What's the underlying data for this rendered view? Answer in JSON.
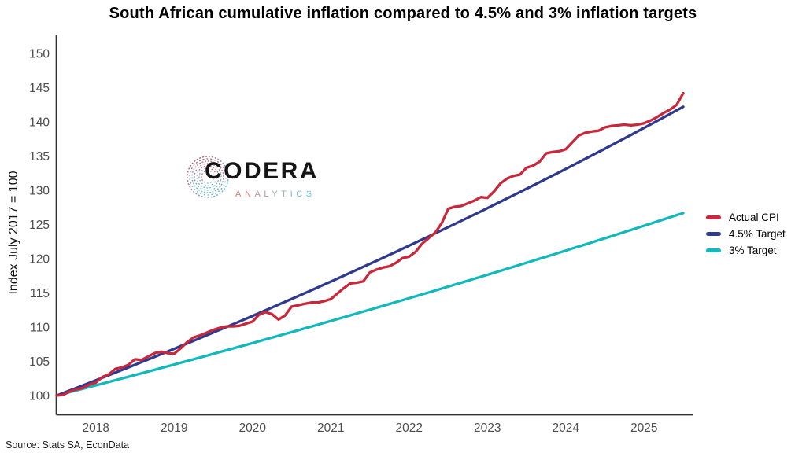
{
  "title": "South African cumulative inflation compared to 4.5% and 3% inflation targets",
  "y_axis_label": "Index July 2017 = 100",
  "source": "Source: Stats SA, EconData",
  "logo": {
    "name": "CODERA",
    "subtitle": "ANALYTICS",
    "subtitle_gradient": [
      "#DA8078",
      "#A79DB6",
      "#62CBDD"
    ],
    "name_color": "#151515"
  },
  "colors": {
    "actual_cpi": "#C9283C",
    "target_4_5": "#2D3A8D",
    "target_3": "#12B8BC",
    "axis_line": "#333333",
    "tick_text": "#4D4D4D"
  },
  "legend": {
    "position": "right-middle",
    "items": [
      "Actual CPI",
      "4.5% Target",
      "3% Target"
    ]
  },
  "chart_data": {
    "type": "line",
    "title": "South African cumulative inflation compared to 4.5% and 3% inflation targets",
    "xlabel": "",
    "ylabel": "Index July 2017 = 100",
    "frequency": "monthly",
    "x_start": "2017-07",
    "x_end": "2025-07",
    "x_tick_years": [
      2018,
      2019,
      2020,
      2021,
      2022,
      2023,
      2024,
      2025
    ],
    "y_ticks": [
      100,
      105,
      110,
      115,
      120,
      125,
      130,
      135,
      140,
      145,
      150
    ],
    "ylim": [
      97,
      153
    ],
    "grid": false,
    "legend_position": "right",
    "series": [
      {
        "name": "Actual CPI",
        "color": "#C9283C",
        "values": [
          100.0,
          100.1,
          100.6,
          100.9,
          101.1,
          101.6,
          101.9,
          102.7,
          103.1,
          103.9,
          104.1,
          104.5,
          105.3,
          105.2,
          105.7,
          106.2,
          106.4,
          106.2,
          106.1,
          106.9,
          107.8,
          108.5,
          108.8,
          109.2,
          109.6,
          109.9,
          110.1,
          110.1,
          110.2,
          110.5,
          110.8,
          111.8,
          112.2,
          111.9,
          111.1,
          111.7,
          113.0,
          113.2,
          113.4,
          113.6,
          113.6,
          113.8,
          114.1,
          114.9,
          115.7,
          116.4,
          116.5,
          116.7,
          118.0,
          118.4,
          118.7,
          118.9,
          119.4,
          120.1,
          120.3,
          121.0,
          122.2,
          123.0,
          123.8,
          125.2,
          127.3,
          127.6,
          127.7,
          128.1,
          128.5,
          129.0,
          128.9,
          129.8,
          131.0,
          131.7,
          132.1,
          132.3,
          133.3,
          133.6,
          134.2,
          135.4,
          135.6,
          135.7,
          136.0,
          137.0,
          138.0,
          138.4,
          138.6,
          138.7,
          139.2,
          139.4,
          139.5,
          139.6,
          139.5,
          139.6,
          139.8,
          140.2,
          140.7,
          141.3,
          141.8,
          142.5,
          144.2
        ]
      },
      {
        "name": "4.5% Target",
        "color": "#2D3A8D",
        "annual_rate_pct": 4.5,
        "start_value": 100,
        "end_value": 142.2
      },
      {
        "name": "3% Target",
        "color": "#12B8BC",
        "annual_rate_pct": 3.0,
        "start_value": 100,
        "end_value": 126.7
      }
    ]
  }
}
